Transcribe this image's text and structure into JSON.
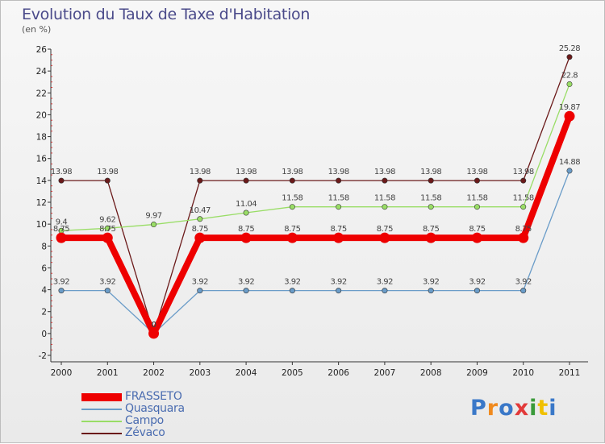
{
  "header": {
    "title": "Evolution du Taux de Taxe d'Habitation",
    "unit": "(en %)"
  },
  "chart_data": {
    "type": "line",
    "title": "Evolution du Taux de Taxe d'Habitation",
    "ylabel": "(en %)",
    "xlabel": "",
    "categories": [
      "2000",
      "2001",
      "2002",
      "2003",
      "2004",
      "2005",
      "2006",
      "2007",
      "2008",
      "2009",
      "2010",
      "2011"
    ],
    "ylim": [
      -2,
      26
    ],
    "yticks": [
      -2,
      0,
      2,
      4,
      6,
      8,
      10,
      12,
      14,
      16,
      18,
      20,
      22,
      24,
      26
    ],
    "grid": false,
    "legend_position": "bottom-left",
    "series": [
      {
        "name": "Zévaco",
        "color": "#6b1a1a",
        "values": [
          13.98,
          13.98,
          0,
          13.98,
          13.98,
          13.98,
          13.98,
          13.98,
          13.98,
          13.98,
          13.98,
          25.28
        ],
        "labels": [
          "13.98",
          "13.98",
          "0",
          "13.98",
          "13.98",
          "13.98",
          "13.98",
          "13.98",
          "13.98",
          "13.98",
          "13.98",
          "25.28"
        ]
      },
      {
        "name": "Campo",
        "color": "#99dd66",
        "values": [
          9.4,
          9.62,
          9.97,
          10.47,
          11.04,
          11.58,
          11.58,
          11.58,
          11.58,
          11.58,
          11.58,
          22.8
        ],
        "labels": [
          "9.4",
          "9.62",
          "9.97",
          "10.47",
          "11.04",
          "11.58",
          "11.58",
          "11.58",
          "11.58",
          "11.58",
          "11.58",
          "22.8"
        ]
      },
      {
        "name": "Quasquara",
        "color": "#6a9cc8",
        "values": [
          3.92,
          3.92,
          0,
          3.92,
          3.92,
          3.92,
          3.92,
          3.92,
          3.92,
          3.92,
          3.92,
          14.88
        ],
        "labels": [
          "3.92",
          "3.92",
          "0",
          "3.92",
          "3.92",
          "3.92",
          "3.92",
          "3.92",
          "3.92",
          "3.92",
          "3.92",
          "14.88"
        ]
      },
      {
        "name": "FRASSETO",
        "color": "#ee0000",
        "values": [
          8.75,
          8.75,
          0,
          8.75,
          8.75,
          8.75,
          8.75,
          8.75,
          8.75,
          8.75,
          8.75,
          19.87
        ],
        "labels": [
          "8.75",
          "8.75",
          "0",
          "8.75",
          "8.75",
          "8.75",
          "8.75",
          "8.75",
          "8.75",
          "8.75",
          "8.75",
          "19.87"
        ]
      }
    ]
  },
  "legend": {
    "items": [
      {
        "label": "FRASSETO",
        "color": "#ee0000"
      },
      {
        "label": "Quasquara",
        "color": "#6a9cc8"
      },
      {
        "label": "Campo",
        "color": "#99dd66"
      },
      {
        "label": "Zévaco",
        "color": "#6b1a1a"
      }
    ]
  },
  "logo": {
    "text": "Proxiti",
    "colors": [
      "#3a78c8",
      "#f08a1e",
      "#3a78c8",
      "#e23a3a",
      "#3a9a3a",
      "#f0c000",
      "#3a78c8"
    ]
  }
}
